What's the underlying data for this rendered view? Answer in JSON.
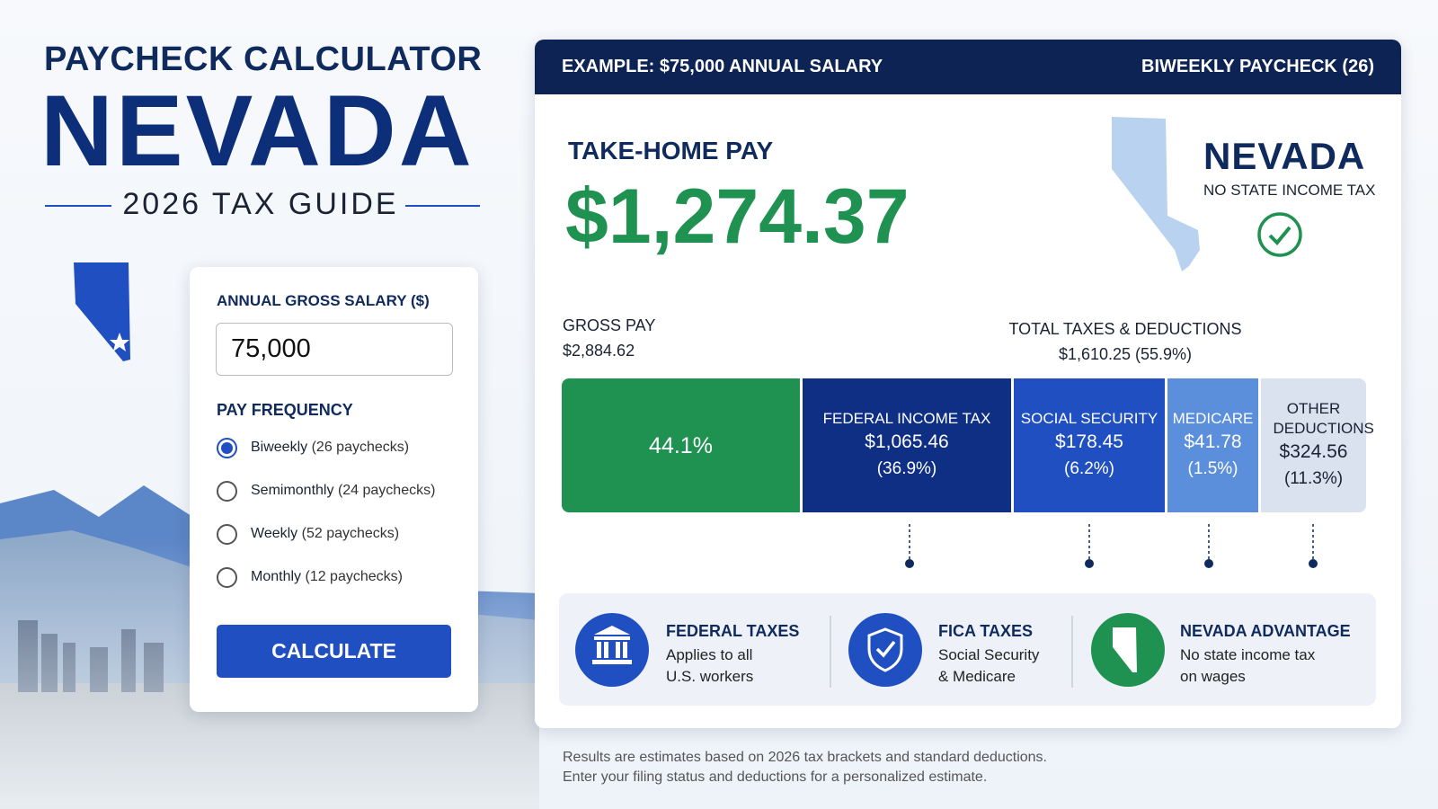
{
  "header": {
    "kicker": "PAYCHECK CALCULATOR",
    "state": "NEVADA",
    "subtitle": "2026 TAX GUIDE"
  },
  "form": {
    "salary_label": "ANNUAL GROSS SALARY ($)",
    "salary_value": "75,000",
    "frequency_label": "PAY FREQUENCY",
    "options": [
      {
        "name": "Biweekly",
        "detail": "(26 paychecks)",
        "selected": true
      },
      {
        "name": "Semimonthly",
        "detail": "(24 paychecks)",
        "selected": false
      },
      {
        "name": "Weekly",
        "detail": "(52 paychecks)",
        "selected": false
      },
      {
        "name": "Monthly",
        "detail": "(12 paychecks)",
        "selected": false
      }
    ],
    "button": "CALCULATE"
  },
  "results": {
    "banner_left": "EXAMPLE: $75,000 ANNUAL SALARY",
    "banner_right": "BIWEEKLY PAYCHECK (26)",
    "take_home_label": "TAKE-HOME PAY",
    "take_home": "$1,274.37",
    "state_name": "NEVADA",
    "state_note": "NO STATE INCOME TAX",
    "gross_label": "GROSS PAY",
    "gross_value": "$2,884.62",
    "deductions_label": "TOTAL TAXES & DEDUCTIONS",
    "deductions_value": "$1,610.25 (55.9%)",
    "segments": [
      {
        "label": "44.1%"
      },
      {
        "label": "FEDERAL INCOME TAX",
        "amount": "$1,065.46",
        "share": "(36.9%)"
      },
      {
        "label": "SOCIAL SECURITY",
        "amount": "$178.45",
        "share": "(6.2%)"
      },
      {
        "label": "MEDICARE",
        "amount": "$41.78",
        "share": "(1.5%)"
      },
      {
        "label": "OTHER DEDUCTIONS",
        "amount": "$324.56",
        "share": "(11.3%)"
      }
    ]
  },
  "info": [
    {
      "title": "FEDERAL TAXES",
      "lines": [
        "Applies to all",
        "U.S. workers"
      ]
    },
    {
      "title": "FICA TAXES",
      "lines": [
        "Social Security",
        "& Medicare"
      ]
    },
    {
      "title": "NEVADA ADVANTAGE",
      "lines": [
        "No state income tax",
        "on wages"
      ]
    }
  ],
  "footnote": [
    "Results are estimates based on 2026 tax brackets and standard deductions.",
    "Enter your filing status and deductions for a personalized estimate."
  ]
}
